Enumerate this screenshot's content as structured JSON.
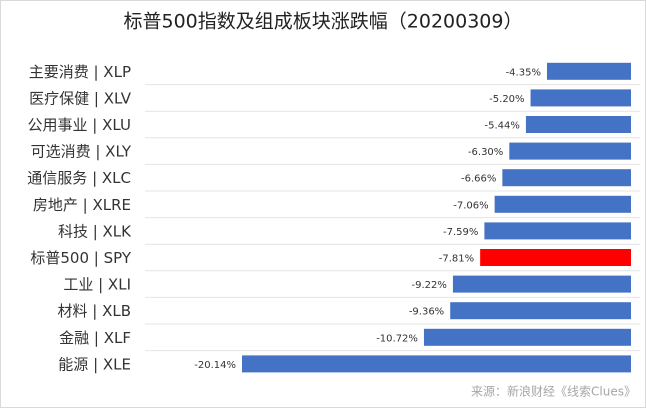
{
  "chart_data": {
    "type": "hbar",
    "title": "标普500指数及组成板块涨跌幅（20200309）",
    "categories": [
      "主要消费 | XLP",
      "医疗保健 | XLV",
      "公用事业 | XLU",
      "可选消费 | XLY",
      "通信服务 | XLC",
      "房地产 | XLRE",
      "科技 | XLK",
      "标普500 | SPY",
      "工业 | XLI",
      "材料 | XLB",
      "金融 | XLF",
      "能源 | XLE"
    ],
    "values": [
      -4.35,
      -5.2,
      -5.44,
      -6.3,
      -6.66,
      -7.06,
      -7.59,
      -7.81,
      -9.22,
      -9.36,
      -10.72,
      -20.14
    ],
    "value_labels": [
      "-4.35%",
      "-5.20%",
      "-5.44%",
      "-6.30%",
      "-6.66%",
      "-7.06%",
      "-7.59%",
      "-7.81%",
      "-9.22%",
      "-9.36%",
      "-10.72%",
      "-20.14%"
    ],
    "colors": [
      "#4472c4",
      "#4472c4",
      "#4472c4",
      "#4472c4",
      "#4472c4",
      "#4472c4",
      "#4472c4",
      "#ff0000",
      "#4472c4",
      "#4472c4",
      "#4472c4",
      "#4472c4"
    ],
    "source": "来源：新浪财经《线索Clues》"
  }
}
